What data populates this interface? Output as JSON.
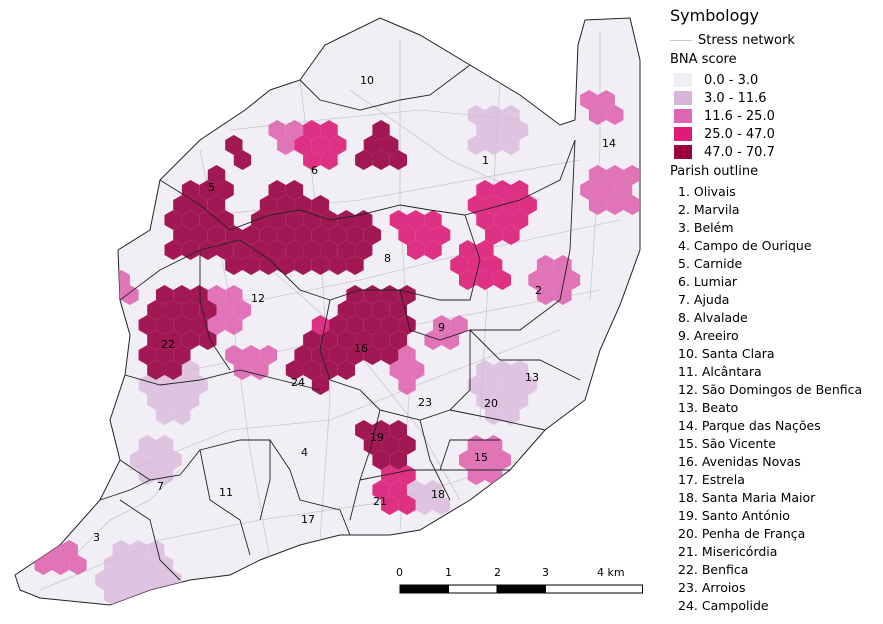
{
  "legend": {
    "title": "Symbology",
    "network_label": "Stress network",
    "score_title": "BNA score",
    "classes": [
      {
        "label": "0.0 - 3.0",
        "color": "#f1eef6"
      },
      {
        "label": "3.0 - 11.6",
        "color": "#d7b5d8"
      },
      {
        "label": "11.6 - 25.0",
        "color": "#df65b0"
      },
      {
        "label": "25.0 - 47.0",
        "color": "#dd1c77"
      },
      {
        "label": "47.0 - 70.7",
        "color": "#980043"
      }
    ],
    "parish_title": "Parish outline",
    "parishes": [
      "1. Olivais",
      "2. Marvila",
      "3. Belém",
      "4. Campo de Ourique",
      "5. Carnide",
      "6. Lumiar",
      "7. Ajuda",
      "8. Alvalade",
      "9. Areeiro",
      "10. Santa Clara",
      "11. Alcântara",
      "12. São Domingos de Benfica",
      "13. Beato",
      "14. Parque das Nações",
      "15. São Vicente",
      "16. Avenidas Novas",
      "17. Estrela",
      "18. Santa Maria Maior",
      "19. Santo António",
      "20. Penha de França",
      "21. Misericórdia",
      "22. Benfica",
      "23. Arroios",
      "24. Campolide"
    ]
  },
  "map_labels": [
    "1",
    "2",
    "3",
    "4",
    "5",
    "6",
    "7",
    "8",
    "9",
    "10",
    "11",
    "12",
    "13",
    "14",
    "15",
    "16",
    "17",
    "18",
    "19",
    "20",
    "21",
    "22",
    "23",
    "24"
  ],
  "scale_bar": {
    "ticks": [
      "0",
      "1",
      "2",
      "3",
      "4 km"
    ]
  }
}
